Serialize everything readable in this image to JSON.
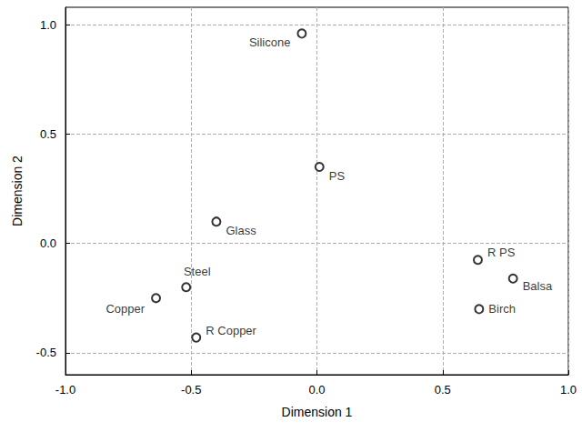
{
  "chart_data": {
    "type": "scatter",
    "x_label": "Dimension 1",
    "y_label": "Dimension 2",
    "labels": [
      "Silicone",
      "PS",
      "Glass",
      "Steel",
      "Copper",
      "R Copper",
      "R PS",
      "Balsa",
      "Birch"
    ],
    "x": [
      -0.06,
      0.01,
      -0.4,
      -0.52,
      -0.64,
      -0.48,
      0.64,
      0.78,
      0.645
    ],
    "y": [
      0.96,
      0.35,
      0.1,
      -0.2,
      -0.25,
      -0.43,
      -0.075,
      -0.16,
      -0.3
    ],
    "xlim": [
      -1.0,
      1.0
    ],
    "xticks": [
      {
        "value": -1.0,
        "label": "-1.0"
      },
      {
        "value": -0.5,
        "label": "-0.5"
      },
      {
        "value": 0.0,
        "label": "0.0"
      },
      {
        "value": 0.5,
        "label": "0.5"
      },
      {
        "value": 1.0,
        "label": "1.0"
      }
    ],
    "ylim": [
      -0.6,
      1.08
    ],
    "yticks": [
      {
        "value": -0.5,
        "label": "-0.5"
      },
      {
        "value": 0.0,
        "label": "0.0"
      },
      {
        "value": 0.5,
        "label": "0.5"
      },
      {
        "value": 1.0,
        "label": "1.0"
      }
    ],
    "grid": true,
    "marker": "open circle",
    "color": "#000000"
  }
}
